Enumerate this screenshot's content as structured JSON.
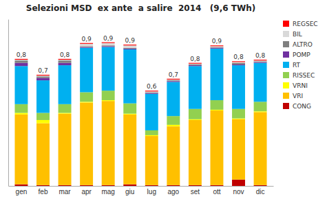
{
  "chart_data": {
    "type": "bar",
    "stacked": true,
    "title": "Selezioni MSD  ex ante  a salire  2014   (9,6 TWh)",
    "categories": [
      "gen",
      "feb",
      "mar",
      "apr",
      "mag",
      "giu",
      "lug",
      "ago",
      "set",
      "ott",
      "nov",
      "dic"
    ],
    "series": [
      {
        "name": "CONG",
        "color": "#c00000",
        "values": [
          0.01,
          0.005,
          0.005,
          0.005,
          0.005,
          0.01,
          0.005,
          0.005,
          0.005,
          0.005,
          0.04,
          0.005
        ]
      },
      {
        "name": "VRI",
        "color": "#ffc000",
        "values": [
          0.44,
          0.39,
          0.45,
          0.52,
          0.53,
          0.44,
          0.31,
          0.37,
          0.41,
          0.47,
          0.38,
          0.46
        ]
      },
      {
        "name": "VRNI",
        "color": "#ffff00",
        "values": [
          0.01,
          0.02,
          0.005,
          0.005,
          0.005,
          0.005,
          0.005,
          0.01,
          0.005,
          0.005,
          0.005,
          0.005
        ]
      },
      {
        "name": "RISSEC",
        "color": "#92d050",
        "values": [
          0.055,
          0.045,
          0.055,
          0.06,
          0.06,
          0.065,
          0.03,
          0.055,
          0.065,
          0.06,
          0.06,
          0.06
        ]
      },
      {
        "name": "RT",
        "color": "#00b0f0",
        "values": [
          0.24,
          0.205,
          0.245,
          0.28,
          0.275,
          0.34,
          0.23,
          0.215,
          0.27,
          0.325,
          0.275,
          0.245
        ]
      },
      {
        "name": "POMP",
        "color": "#7030a0",
        "values": [
          0.02,
          0.015,
          0.015,
          0.005,
          0.005,
          0.005,
          0.005,
          0.005,
          0.005,
          0.005,
          0.005,
          0.005
        ]
      },
      {
        "name": "ALTRO",
        "color": "#7f7f7f",
        "values": [
          0.015,
          0.01,
          0.015,
          0.005,
          0.005,
          0.005,
          0.005,
          0.005,
          0.005,
          0.005,
          0.01,
          0.005
        ]
      },
      {
        "name": "BIL",
        "color": "#d9d9d9",
        "values": [
          0.005,
          0.005,
          0.005,
          0.015,
          0.015,
          0.015,
          0.005,
          0.005,
          0.005,
          0.005,
          0.005,
          0.005
        ]
      },
      {
        "name": "REGSEC",
        "color": "#ff0000",
        "values": [
          0.005,
          0.005,
          0.005,
          0.005,
          0.005,
          0.005,
          0.005,
          0.005,
          0.005,
          0.005,
          0.005,
          0.005
        ]
      }
    ],
    "totals": [
      0.8,
      0.7,
      0.8,
      0.9,
      0.905,
      0.89,
      0.6,
      0.675,
      0.775,
      0.885,
      0.785,
      0.795
    ],
    "total_labels": [
      "0,8",
      "0,7",
      "0,8",
      "0,9",
      "0,9",
      "0,9",
      "0,6",
      "0,7",
      "0,8",
      "0,9",
      "0,8",
      "0,8"
    ],
    "ylim": [
      0,
      1.05
    ],
    "yticks": [],
    "tick_labels": "x",
    "grid": false,
    "legend": "right"
  }
}
